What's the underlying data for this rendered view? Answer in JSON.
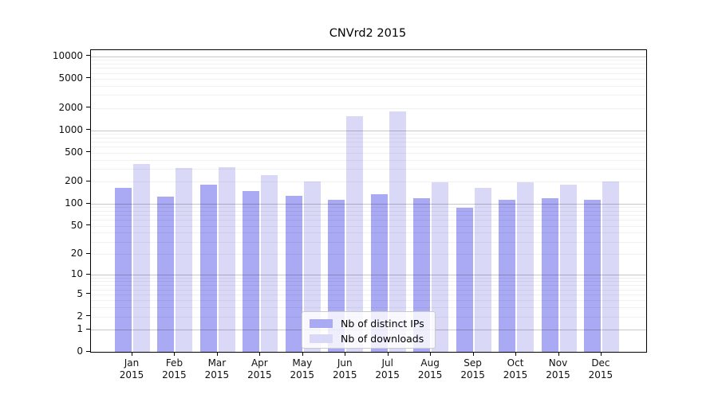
{
  "chart_data": {
    "type": "bar",
    "title": "CNVrd2 2015",
    "categories": [
      "Jan",
      "Feb",
      "Mar",
      "Apr",
      "May",
      "Jun",
      "Jul",
      "Aug",
      "Sep",
      "Oct",
      "Nov",
      "Dec"
    ],
    "x_year": "2015",
    "series": [
      {
        "name": "Nb of distinct IPs",
        "color": "#a9a9f4",
        "values": [
          165,
          125,
          185,
          150,
          130,
          115,
          135,
          120,
          88,
          113,
          120,
          115
        ]
      },
      {
        "name": "Nb of downloads",
        "color": "#d9d9f7",
        "values": [
          350,
          310,
          315,
          245,
          200,
          1550,
          1800,
          195,
          165,
          195,
          185,
          200
        ]
      }
    ],
    "yscale": "log(1+x)",
    "yticks": [
      0,
      1,
      2,
      5,
      10,
      20,
      50,
      100,
      200,
      500,
      1000,
      2000,
      5000,
      10000
    ],
    "ylim": [
      0,
      12000
    ],
    "grid": true,
    "legend_position": "lower center"
  },
  "colors": {
    "background": "#ffffff",
    "axis": "#000000",
    "text": "#111111",
    "grid_minor": "rgba(0,0,0,0.055)",
    "grid_major": "rgba(0,0,0,0.22)",
    "legend_border": "#cbcbcb",
    "legend_bg": "rgba(255,255,255,0.8)"
  }
}
